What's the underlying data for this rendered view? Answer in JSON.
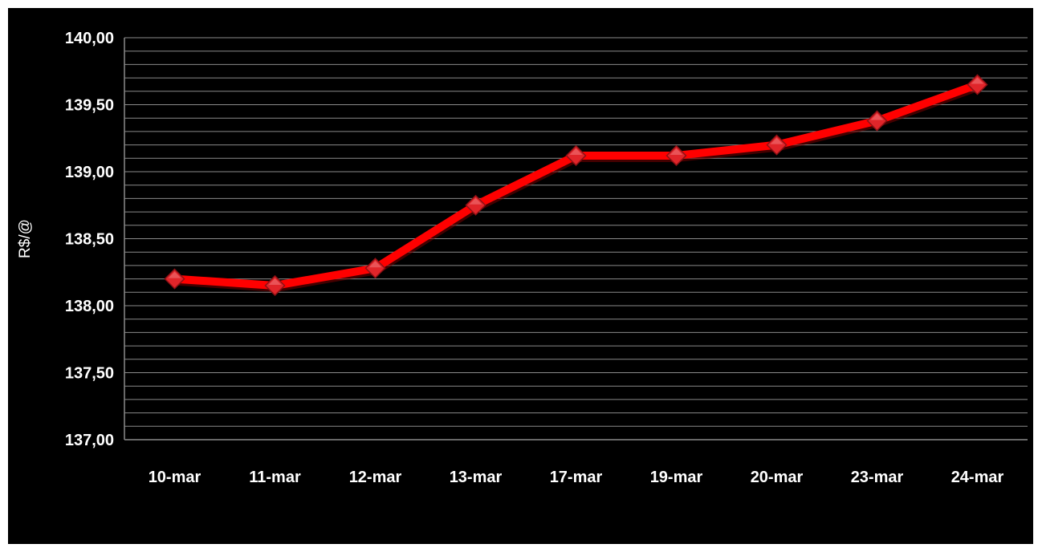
{
  "chart_data": {
    "type": "line",
    "title": "",
    "xlabel": "",
    "ylabel": "R$/@",
    "categories": [
      "10-mar",
      "11-mar",
      "12-mar",
      "13-mar",
      "17-mar",
      "19-mar",
      "20-mar",
      "23-mar",
      "24-mar"
    ],
    "series": [
      {
        "values": [
          138.2,
          138.15,
          138.28,
          138.75,
          139.12,
          139.12,
          139.2,
          139.38,
          139.65
        ]
      }
    ],
    "ylim": [
      137.0,
      140.0
    ],
    "y_ticks": [
      "137,00",
      "137,50",
      "138,00",
      "138,50",
      "139,00",
      "139,50",
      "140,00"
    ],
    "y_tick_step": 0.5,
    "minor_grid_step": 0.1,
    "grid": true,
    "legend": "none",
    "line_color": "#ff0000",
    "marker": "diamond",
    "marker_color": "#e0252a",
    "background_color": "#000000",
    "grid_color": "#8a8a8a",
    "text_color": "#ffffff"
  }
}
